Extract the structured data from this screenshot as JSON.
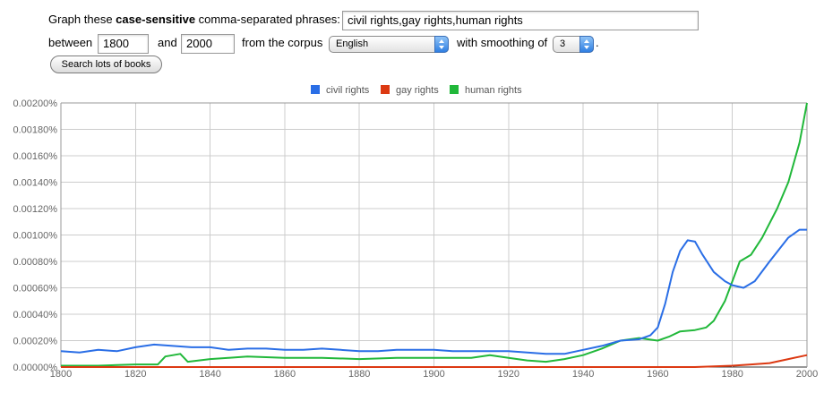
{
  "form": {
    "graph_prefix": "Graph these ",
    "graph_bold": "case-sensitive",
    "graph_suffix": " comma-separated phrases:",
    "phrases_value": "civil rights,gay rights,human rights",
    "between_label": "between",
    "start_year": "1800",
    "and_label": "and",
    "end_year": "2000",
    "corpus_label": "from the corpus",
    "corpus_value": "English",
    "smoothing_label": "with smoothing of",
    "smoothing_value": "3",
    "period": ".",
    "search_button": "Search lots of books"
  },
  "chart_data": {
    "type": "line",
    "xlim": [
      1800,
      2000
    ],
    "ylim": [
      0,
      0.002
    ],
    "x_ticks": [
      "1800",
      "1820",
      "1840",
      "1860",
      "1880",
      "1900",
      "1920",
      "1940",
      "1960",
      "1980",
      "2000"
    ],
    "y_ticks": [
      "0.00000%",
      "0.00020%",
      "0.00040%",
      "0.00060%",
      "0.00080%",
      "0.00100%",
      "0.00120%",
      "0.00140%",
      "0.00160%",
      "0.00180%",
      "0.00200%"
    ],
    "grid": true,
    "legend_position": "top-center",
    "series": [
      {
        "name": "civil rights",
        "color": "#2a6ee6",
        "points": [
          [
            1800,
            0.00012
          ],
          [
            1805,
            0.00011
          ],
          [
            1810,
            0.00013
          ],
          [
            1815,
            0.00012
          ],
          [
            1820,
            0.00015
          ],
          [
            1825,
            0.00017
          ],
          [
            1830,
            0.00016
          ],
          [
            1835,
            0.00015
          ],
          [
            1840,
            0.00015
          ],
          [
            1845,
            0.00013
          ],
          [
            1850,
            0.00014
          ],
          [
            1855,
            0.00014
          ],
          [
            1860,
            0.00013
          ],
          [
            1865,
            0.00013
          ],
          [
            1870,
            0.00014
          ],
          [
            1875,
            0.00013
          ],
          [
            1880,
            0.00012
          ],
          [
            1885,
            0.00012
          ],
          [
            1890,
            0.00013
          ],
          [
            1895,
            0.00013
          ],
          [
            1900,
            0.00013
          ],
          [
            1905,
            0.00012
          ],
          [
            1910,
            0.00012
          ],
          [
            1915,
            0.00012
          ],
          [
            1920,
            0.00012
          ],
          [
            1925,
            0.00011
          ],
          [
            1930,
            0.0001
          ],
          [
            1935,
            0.0001
          ],
          [
            1940,
            0.00013
          ],
          [
            1945,
            0.00016
          ],
          [
            1950,
            0.0002
          ],
          [
            1955,
            0.00021
          ],
          [
            1958,
            0.00024
          ],
          [
            1960,
            0.0003
          ],
          [
            1962,
            0.00048
          ],
          [
            1964,
            0.00072
          ],
          [
            1966,
            0.00088
          ],
          [
            1968,
            0.00096
          ],
          [
            1970,
            0.00095
          ],
          [
            1972,
            0.00085
          ],
          [
            1975,
            0.00072
          ],
          [
            1978,
            0.00065
          ],
          [
            1980,
            0.00062
          ],
          [
            1983,
            0.0006
          ],
          [
            1986,
            0.00065
          ],
          [
            1990,
            0.0008
          ],
          [
            1995,
            0.00098
          ],
          [
            1998,
            0.00104
          ],
          [
            2000,
            0.00104
          ]
        ]
      },
      {
        "name": "gay rights",
        "color": "#dc3912",
        "points": [
          [
            1800,
            0
          ],
          [
            1960,
            0
          ],
          [
            1970,
            0
          ],
          [
            1975,
            5e-06
          ],
          [
            1980,
            1e-05
          ],
          [
            1985,
            2e-05
          ],
          [
            1990,
            3e-05
          ],
          [
            1995,
            6e-05
          ],
          [
            2000,
            9e-05
          ]
        ]
      },
      {
        "name": "human rights",
        "color": "#21b83a",
        "points": [
          [
            1800,
            1e-05
          ],
          [
            1810,
            1e-05
          ],
          [
            1820,
            2e-05
          ],
          [
            1826,
            2e-05
          ],
          [
            1828,
            8e-05
          ],
          [
            1832,
            0.0001
          ],
          [
            1834,
            4e-05
          ],
          [
            1840,
            6e-05
          ],
          [
            1845,
            7e-05
          ],
          [
            1850,
            8e-05
          ],
          [
            1860,
            7e-05
          ],
          [
            1870,
            7e-05
          ],
          [
            1880,
            6e-05
          ],
          [
            1890,
            7e-05
          ],
          [
            1900,
            7e-05
          ],
          [
            1910,
            7e-05
          ],
          [
            1915,
            9e-05
          ],
          [
            1920,
            7e-05
          ],
          [
            1925,
            5e-05
          ],
          [
            1930,
            4e-05
          ],
          [
            1935,
            6e-05
          ],
          [
            1940,
            9e-05
          ],
          [
            1945,
            0.00014
          ],
          [
            1950,
            0.0002
          ],
          [
            1955,
            0.00022
          ],
          [
            1960,
            0.0002
          ],
          [
            1963,
            0.00023
          ],
          [
            1966,
            0.00027
          ],
          [
            1970,
            0.00028
          ],
          [
            1973,
            0.0003
          ],
          [
            1975,
            0.00035
          ],
          [
            1978,
            0.0005
          ],
          [
            1980,
            0.00065
          ],
          [
            1982,
            0.0008
          ],
          [
            1985,
            0.00085
          ],
          [
            1988,
            0.00098
          ],
          [
            1992,
            0.0012
          ],
          [
            1995,
            0.0014
          ],
          [
            1998,
            0.0017
          ],
          [
            2000,
            0.002
          ]
        ]
      }
    ]
  }
}
